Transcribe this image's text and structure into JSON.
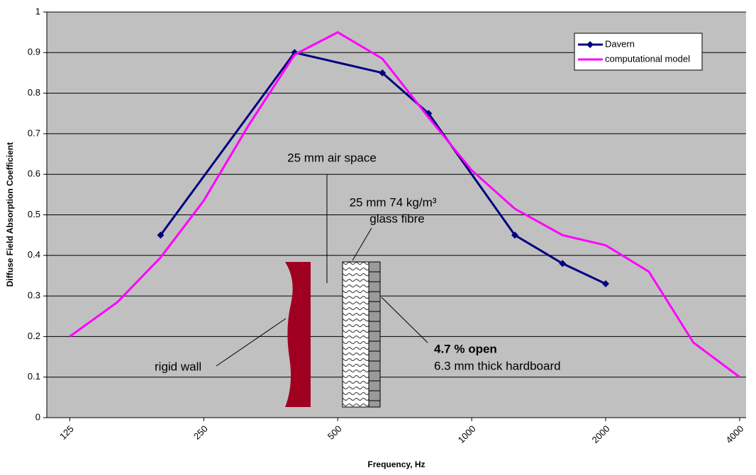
{
  "chart_data": {
    "type": "line",
    "x_label": "Frequency, Hz",
    "y_label": "Diffuse Field Absorption Coefficient",
    "x_scale": "log",
    "xlim": [
      111,
      4135
    ],
    "xticks": [
      125,
      250,
      500,
      1000,
      2000,
      4000
    ],
    "ylim": [
      0,
      1
    ],
    "yticks": [
      0,
      0.1,
      0.2,
      0.3,
      0.4,
      0.5,
      0.6,
      0.7,
      0.8,
      0.9,
      1
    ],
    "grid": true,
    "legend": "top-right",
    "series": [
      {
        "name": "Davern",
        "color": "#000080",
        "marker": "diamond",
        "x": [
          200,
          400,
          630,
          800,
          1250,
          1600,
          2000
        ],
        "values": [
          0.45,
          0.9,
          0.85,
          0.75,
          0.45,
          0.38,
          0.33
        ]
      },
      {
        "name": "computational model",
        "color": "#ff00ff",
        "x": [
          125,
          160,
          200,
          250,
          315,
          400,
          500,
          630,
          800,
          1000,
          1250,
          1600,
          2000,
          2500,
          3150,
          4000
        ],
        "values": [
          0.2,
          0.285,
          0.395,
          0.535,
          0.72,
          0.895,
          0.95,
          0.885,
          0.74,
          0.61,
          0.515,
          0.45,
          0.425,
          0.36,
          0.185,
          0.1
        ]
      }
    ],
    "annotations": [
      "25 mm air space",
      "25 mm 74 kg/m³",
      "glass fibre",
      "4.7 % open",
      "6.3 mm thick hardboard",
      "rigid wall"
    ]
  }
}
